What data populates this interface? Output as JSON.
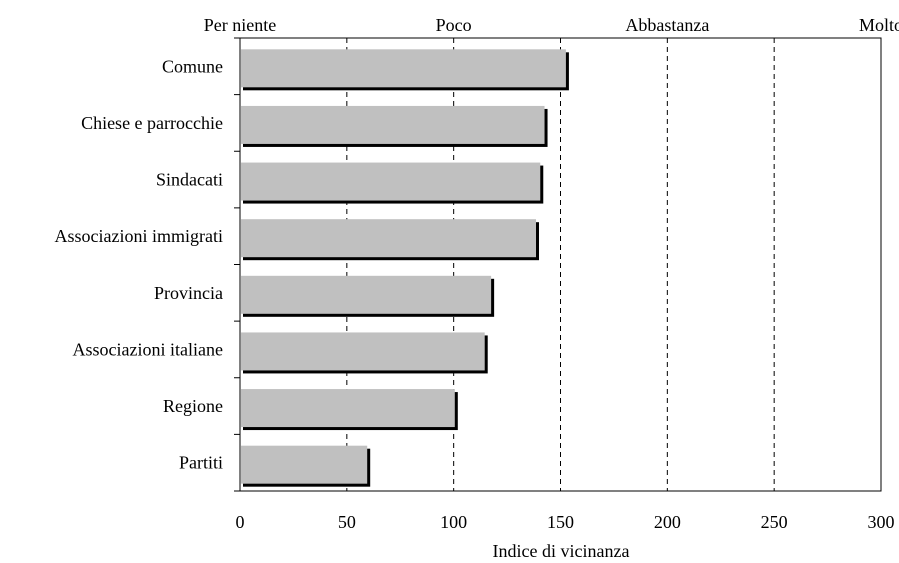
{
  "chart_data": {
    "type": "bar",
    "orientation": "horizontal",
    "categories": [
      "Comune",
      "Chiese e parrocchie",
      "Sindacati",
      "Associazioni immigrati",
      "Provincia",
      "Associazioni italiane",
      "Regione",
      "Partiti"
    ],
    "values": [
      153,
      143,
      141,
      139,
      118,
      115,
      101,
      60
    ],
    "xlabel": "Indice di vicinanza",
    "xlim": [
      0,
      300
    ],
    "xticks": [
      "0",
      "50",
      "100",
      "150",
      "200",
      "250",
      "300"
    ],
    "top_scale_labels": [
      "Per niente",
      "Poco",
      "Abbastanza",
      "Molto"
    ],
    "grid": "vertical dashed at 50, 100, 150, 200, 250",
    "colors": {
      "bar": "#c0c0c0",
      "bar_shadow": "#000000"
    }
  }
}
